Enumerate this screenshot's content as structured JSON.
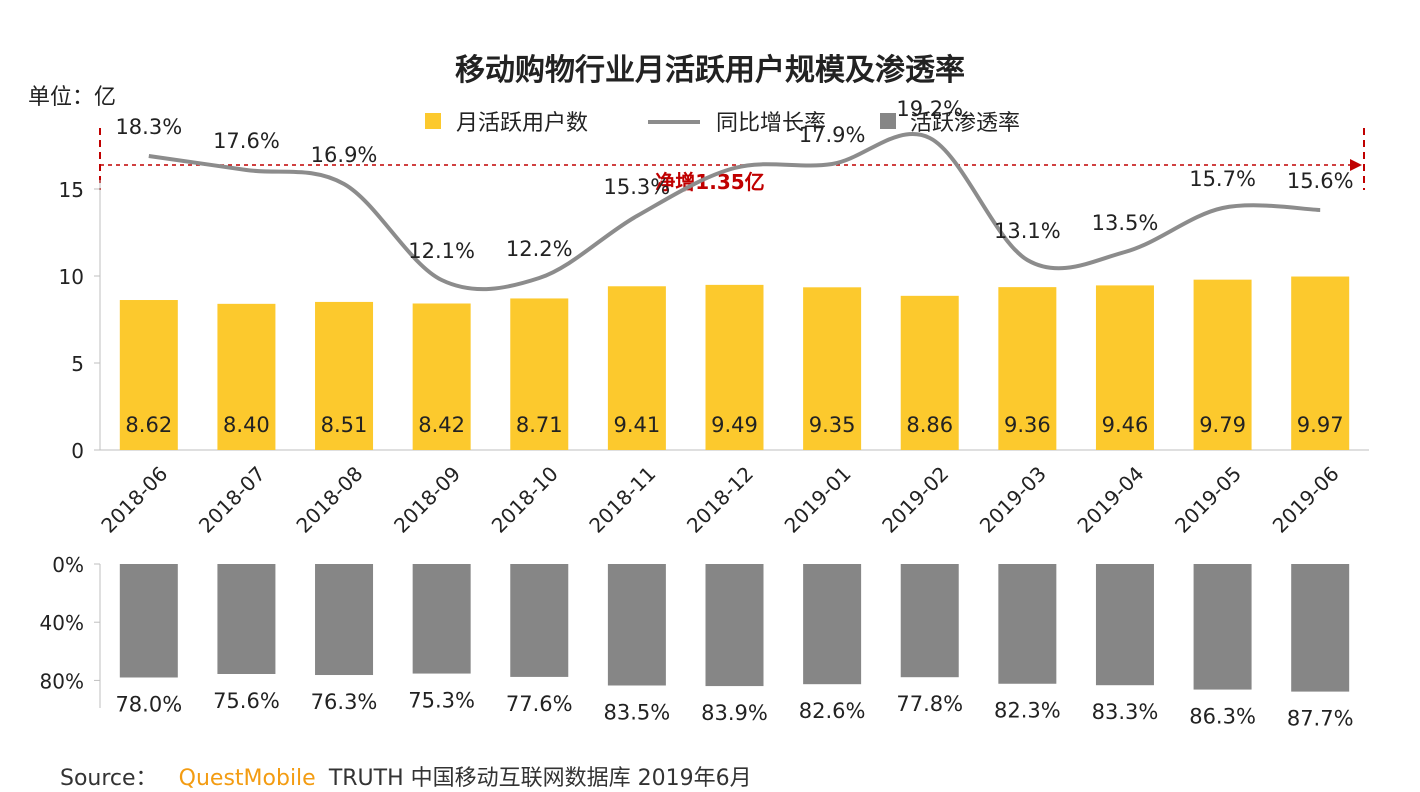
{
  "title": "移动购物行业月活跃用户规模及渗透率",
  "unit_label": "单位：亿",
  "annotation": "净增1.35亿",
  "legend": [
    {
      "label": "月活跃用户数",
      "marker": "square",
      "color": "#fcc92d"
    },
    {
      "label": "同比增长率",
      "marker": "line",
      "color": "#8c8c8c"
    },
    {
      "label": "活跃渗透率",
      "marker": "square",
      "color": "#868686"
    }
  ],
  "source": {
    "prefix": "Source：",
    "brand": "QuestMobile",
    "rest": "TRUTH 中国移动互联网数据库 2019年6月"
  },
  "chart_data": {
    "type": "bar",
    "categories": [
      "2018-06",
      "2018-07",
      "2018-08",
      "2018-09",
      "2018-10",
      "2018-11",
      "2018-12",
      "2019-01",
      "2019-02",
      "2019-03",
      "2019-04",
      "2019-05",
      "2019-06"
    ],
    "series": [
      {
        "name": "月活跃用户数",
        "type": "bar",
        "color": "#fcc92d",
        "values": [
          8.62,
          8.4,
          8.51,
          8.42,
          8.71,
          9.41,
          9.49,
          9.35,
          8.86,
          9.36,
          9.46,
          9.79,
          9.97
        ],
        "labels": [
          "8.62",
          "8.40",
          "8.51",
          "8.42",
          "8.71",
          "9.41",
          "9.49",
          "9.35",
          "8.86",
          "9.36",
          "9.46",
          "9.79",
          "9.97"
        ]
      },
      {
        "name": "同比增长率",
        "type": "line",
        "color": "#8c8c8c",
        "values": [
          18.3,
          17.6,
          16.9,
          12.1,
          12.2,
          15.3,
          17.7,
          17.9,
          19.2,
          13.1,
          13.5,
          15.7,
          15.6
        ],
        "labels": [
          "18.3%",
          "17.6%",
          "16.9%",
          "12.1%",
          "12.2%",
          "15.3%",
          "",
          "17.9%",
          "19.2%",
          "13.1%",
          "13.5%",
          "15.7%",
          "15.6%"
        ]
      },
      {
        "name": "活跃渗透率",
        "type": "bar",
        "color": "#868686",
        "values": [
          78.0,
          75.6,
          76.3,
          75.3,
          77.6,
          83.5,
          83.9,
          82.6,
          77.8,
          82.3,
          83.3,
          86.3,
          87.7
        ],
        "labels": [
          "78.0%",
          "75.6%",
          "76.3%",
          "75.3%",
          "77.6%",
          "83.5%",
          "83.9%",
          "82.6%",
          "77.8%",
          "82.3%",
          "83.3%",
          "86.3%",
          "87.7%"
        ]
      }
    ],
    "y_main": {
      "ticks": [
        "0",
        "5",
        "10",
        "15"
      ],
      "ylim": [
        0,
        17
      ]
    },
    "y_pen": {
      "ticks": [
        "0%",
        "40%",
        "80%"
      ],
      "ylim": [
        0,
        80
      ]
    },
    "grid": false,
    "legend_position": "top-center"
  }
}
